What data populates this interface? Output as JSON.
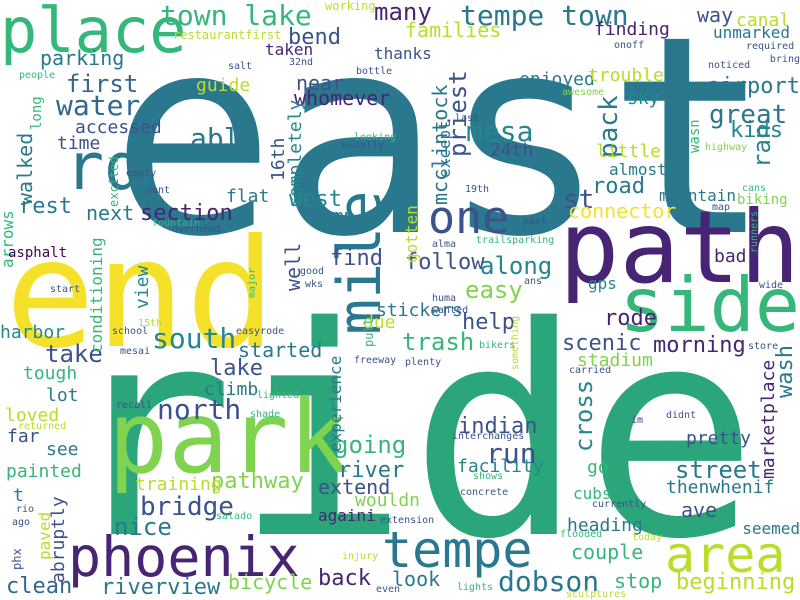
{
  "palette": {
    "yellow": "#f5e12a",
    "yellowgreen": "#b8dd2b",
    "lightgreen": "#7fd34e",
    "green": "#35b779",
    "seagreen": "#2ba67a",
    "teal": "#24878e",
    "blueteal": "#2a788e",
    "blue": "#31688e",
    "indigo": "#3b528b",
    "purple": "#443983",
    "darkpurple": "#482475",
    "deep": "#440154"
  },
  "words": [
    {
      "text": "east",
      "color": "blueteal"
    },
    {
      "text": "ride",
      "color": "seagreen"
    },
    {
      "text": "end",
      "color": "yellow"
    },
    {
      "text": "path",
      "color": "darkpurple"
    },
    {
      "text": "park",
      "color": "lightgreen"
    },
    {
      "text": "side",
      "color": "green"
    },
    {
      "text": "mile",
      "color": "blueteal"
    },
    {
      "text": "place",
      "color": "green"
    },
    {
      "text": "rd",
      "color": "blueteal"
    },
    {
      "text": "phoenix",
      "color": "darkpurple"
    },
    {
      "text": "tempe",
      "color": "blueteal"
    },
    {
      "text": "area",
      "color": "yellowgreen"
    },
    {
      "text": "one",
      "color": "indigo"
    },
    {
      "text": "town lake",
      "color": "green"
    },
    {
      "text": "tempe town",
      "color": "blueteal"
    },
    {
      "text": "south",
      "color": "teal"
    },
    {
      "text": "north",
      "color": "indigo"
    },
    {
      "text": "dobson",
      "color": "blueteal"
    },
    {
      "text": "bridge",
      "color": "indigo"
    },
    {
      "text": "water",
      "color": "blue"
    },
    {
      "text": "mesa",
      "color": "teal"
    },
    {
      "text": "first",
      "color": "blue"
    },
    {
      "text": "many",
      "color": "darkpurple"
    },
    {
      "text": "along",
      "color": "teal"
    },
    {
      "text": "easy",
      "color": "lightgreen"
    },
    {
      "text": "able",
      "color": "blueteal"
    },
    {
      "text": "section",
      "color": "darkpurple"
    },
    {
      "text": "great",
      "color": "blueteal"
    },
    {
      "text": "pack",
      "color": "blueteal"
    },
    {
      "text": "st",
      "color": "indigo"
    },
    {
      "text": "rest",
      "color": "blueteal"
    },
    {
      "text": "ran",
      "color": "teal"
    },
    {
      "text": "run",
      "color": "indigo"
    },
    {
      "text": "going",
      "color": "green"
    },
    {
      "text": "street",
      "color": "blueteal"
    },
    {
      "text": "nice",
      "color": "blueteal"
    },
    {
      "text": "back",
      "color": "darkpurple"
    },
    {
      "text": "couple",
      "color": "green"
    },
    {
      "text": "stop",
      "color": "green"
    },
    {
      "text": "look",
      "color": "blueteal"
    },
    {
      "text": "bicycle",
      "color": "lightgreen"
    },
    {
      "text": "riverview",
      "color": "blueteal"
    },
    {
      "text": "clean",
      "color": "blue"
    },
    {
      "text": "beginning",
      "color": "yellowgreen"
    },
    {
      "text": "heading",
      "color": "blueteal"
    },
    {
      "text": "cross",
      "color": "teal"
    },
    {
      "text": "pathway",
      "color": "lightgreen"
    },
    {
      "text": "river",
      "color": "blueteal"
    },
    {
      "text": "extend",
      "color": "indigo"
    },
    {
      "text": "indian",
      "color": "indigo"
    },
    {
      "text": "facility",
      "color": "teal"
    },
    {
      "text": "scenic",
      "color": "indigo"
    },
    {
      "text": "morning",
      "color": "darkpurple"
    },
    {
      "text": "rode",
      "color": "darkpurple"
    },
    {
      "text": "help",
      "color": "indigo"
    },
    {
      "text": "trash",
      "color": "green"
    },
    {
      "text": "follow",
      "color": "indigo"
    },
    {
      "text": "find",
      "color": "indigo"
    },
    {
      "text": "west",
      "color": "teal"
    },
    {
      "text": "road",
      "color": "blueteal"
    },
    {
      "text": "connector",
      "color": "yellow"
    },
    {
      "text": "take",
      "color": "indigo"
    },
    {
      "text": "lake",
      "color": "indigo"
    },
    {
      "text": "started",
      "color": "blueteal"
    },
    {
      "text": "marketplace",
      "color": "darkpurple"
    },
    {
      "text": "wash",
      "color": "blueteal"
    },
    {
      "text": "stadium",
      "color": "lightgreen"
    },
    {
      "text": "airport",
      "color": "blueteal"
    },
    {
      "text": "kids",
      "color": "teal"
    },
    {
      "text": "canal",
      "color": "yellowgreen"
    },
    {
      "text": "way",
      "color": "indigo"
    },
    {
      "text": "unmarked",
      "color": "blueteal"
    },
    {
      "text": "finding",
      "color": "darkpurple"
    },
    {
      "text": "families",
      "color": "yellowgreen"
    },
    {
      "text": "bend",
      "color": "indigo"
    },
    {
      "text": "near",
      "color": "indigo"
    },
    {
      "text": "whomever",
      "color": "darkpurple"
    },
    {
      "text": "priest",
      "color": "indigo"
    },
    {
      "text": "mcclintock",
      "color": "blueteal"
    },
    {
      "text": "enjoyed",
      "color": "blueteal"
    },
    {
      "text": "trouble",
      "color": "yellowgreen"
    },
    {
      "text": "sky",
      "color": "teal"
    },
    {
      "text": "little",
      "color": "yellowgreen"
    },
    {
      "text": "almost",
      "color": "blueteal"
    },
    {
      "text": "mountain",
      "color": "blueteal"
    },
    {
      "text": "biking",
      "color": "lightgreen"
    },
    {
      "text": "parking",
      "color": "blueteal"
    },
    {
      "text": "guide",
      "color": "yellowgreen"
    },
    {
      "text": "taken",
      "color": "darkpurple"
    },
    {
      "text": "accessed",
      "color": "indigo"
    },
    {
      "text": "time",
      "color": "indigo"
    },
    {
      "text": "walked",
      "color": "blueteal"
    },
    {
      "text": "next",
      "color": "blueteal"
    },
    {
      "text": "flat",
      "color": "blueteal"
    },
    {
      "text": "16th",
      "color": "indigo"
    },
    {
      "text": "completely",
      "color": "teal"
    },
    {
      "text": "jump",
      "color": "blueteal"
    },
    {
      "text": "well",
      "color": "indigo"
    },
    {
      "text": "thanks",
      "color": "indigo"
    },
    {
      "text": "24th",
      "color": "indigo"
    },
    {
      "text": "except",
      "color": "blueteal"
    },
    {
      "text": "gotten",
      "color": "yellowgreen"
    },
    {
      "text": "bad",
      "color": "darkpurple"
    },
    {
      "text": "gps",
      "color": "teal"
    },
    {
      "text": "stickers",
      "color": "blueteal"
    },
    {
      "text": "due",
      "color": "yellowgreen"
    },
    {
      "text": "climb",
      "color": "blueteal"
    },
    {
      "text": "view",
      "color": "teal"
    },
    {
      "text": "harbor",
      "color": "teal"
    },
    {
      "text": "tough",
      "color": "green"
    },
    {
      "text": "lot",
      "color": "blueteal"
    },
    {
      "text": "loved",
      "color": "yellowgreen"
    },
    {
      "text": "far",
      "color": "indigo"
    },
    {
      "text": "see",
      "color": "blueteal"
    },
    {
      "text": "painted",
      "color": "green"
    },
    {
      "text": "t",
      "color": "blueteal"
    },
    {
      "text": "training",
      "color": "yellowgreen"
    },
    {
      "text": "pretty",
      "color": "indigo"
    },
    {
      "text": "go",
      "color": "green"
    },
    {
      "text": "cubs",
      "color": "green"
    },
    {
      "text": "thenwhenif",
      "color": "blueteal"
    },
    {
      "text": "ave",
      "color": "indigo"
    },
    {
      "text": "seemed",
      "color": "blueteal"
    },
    {
      "text": "wouldn",
      "color": "lightgreen"
    },
    {
      "text": "paved",
      "color": "yellowgreen"
    },
    {
      "text": "abruptly",
      "color": "indigo"
    },
    {
      "text": "againi",
      "color": "darkpurple"
    },
    {
      "text": "experience",
      "color": "blueteal"
    },
    {
      "text": "arrows",
      "color": "green"
    },
    {
      "text": "asphalt",
      "color": "deep"
    },
    {
      "text": "conditioning",
      "color": "green"
    },
    {
      "text": "working",
      "color": "yellowgreen"
    },
    {
      "text": "restaurantfirst",
      "color": "yellowgreen"
    },
    {
      "text": "32nd",
      "color": "indigo"
    },
    {
      "text": "salt",
      "color": "indigo"
    },
    {
      "text": "bottle",
      "color": "indigo"
    },
    {
      "text": "people",
      "color": "green"
    },
    {
      "text": "long",
      "color": "green"
    },
    {
      "text": "onoff",
      "color": "indigo"
    },
    {
      "text": "required",
      "color": "indigo"
    },
    {
      "text": "bring",
      "color": "indigo"
    },
    {
      "text": "noticed",
      "color": "indigo"
    },
    {
      "text": "awesome",
      "color": "lightgreen"
    },
    {
      "text": "last",
      "color": "indigo"
    },
    {
      "text": "looking",
      "color": "green"
    },
    {
      "text": "usually",
      "color": "indigo"
    },
    {
      "text": "highway",
      "color": "lightgreen"
    },
    {
      "text": "wasn",
      "color": "green"
    },
    {
      "text": "cans",
      "color": "green"
    },
    {
      "text": "excited",
      "color": "green"
    },
    {
      "text": "empty",
      "color": "indigo"
    },
    {
      "text": "dont",
      "color": "indigo"
    },
    {
      "text": "fountain",
      "color": "green"
    },
    {
      "text": "overhead",
      "color": "indigo"
    },
    {
      "text": "19th",
      "color": "indigo"
    },
    {
      "text": "past",
      "color": "indigo"
    },
    {
      "text": "map",
      "color": "indigo"
    },
    {
      "text": "runners",
      "color": "green"
    },
    {
      "text": "alma",
      "color": "indigo"
    },
    {
      "text": "trailsparking",
      "color": "green"
    },
    {
      "text": "wks",
      "color": "indigo"
    },
    {
      "text": "good",
      "color": "indigo"
    },
    {
      "text": "wide",
      "color": "indigo"
    },
    {
      "text": "ans",
      "color": "indigo"
    },
    {
      "text": "major",
      "color": "green"
    },
    {
      "text": "start",
      "color": "indigo"
    },
    {
      "text": "huma",
      "color": "indigo"
    },
    {
      "text": "wanted",
      "color": "indigo"
    },
    {
      "text": "easyrode",
      "color": "indigo"
    },
    {
      "text": "15th",
      "color": "yellowgreen"
    },
    {
      "text": "school",
      "color": "indigo"
    },
    {
      "text": "pull",
      "color": "green"
    },
    {
      "text": "something",
      "color": "yellowgreen"
    },
    {
      "text": "mesai",
      "color": "indigo"
    },
    {
      "text": "freeway",
      "color": "indigo"
    },
    {
      "text": "plenty",
      "color": "indigo"
    },
    {
      "text": "bikers",
      "color": "green"
    },
    {
      "text": "store",
      "color": "indigo"
    },
    {
      "text": "carried",
      "color": "indigo"
    },
    {
      "text": "didnt",
      "color": "indigo"
    },
    {
      "text": "im",
      "color": "indigo"
    },
    {
      "text": "recall",
      "color": "indigo"
    },
    {
      "text": "lighted",
      "color": "green"
    },
    {
      "text": "shade",
      "color": "green"
    },
    {
      "text": "returned",
      "color": "yellowgreen"
    },
    {
      "text": "interchanges",
      "color": "indigo"
    },
    {
      "text": "shows",
      "color": "green"
    },
    {
      "text": "concrete",
      "color": "indigo"
    },
    {
      "text": "currently",
      "color": "indigo"
    },
    {
      "text": "rio",
      "color": "indigo"
    },
    {
      "text": "salado",
      "color": "green"
    },
    {
      "text": "ago",
      "color": "indigo"
    },
    {
      "text": "extension",
      "color": "indigo"
    },
    {
      "text": "flooded",
      "color": "green"
    },
    {
      "text": "today",
      "color": "yellowgreen"
    },
    {
      "text": "phx",
      "color": "indigo"
    },
    {
      "text": "injury",
      "color": "yellowgreen"
    },
    {
      "text": "even",
      "color": "indigo"
    },
    {
      "text": "lights",
      "color": "green"
    },
    {
      "text": "sculptures",
      "color": "yellowgreen"
    }
  ]
}
